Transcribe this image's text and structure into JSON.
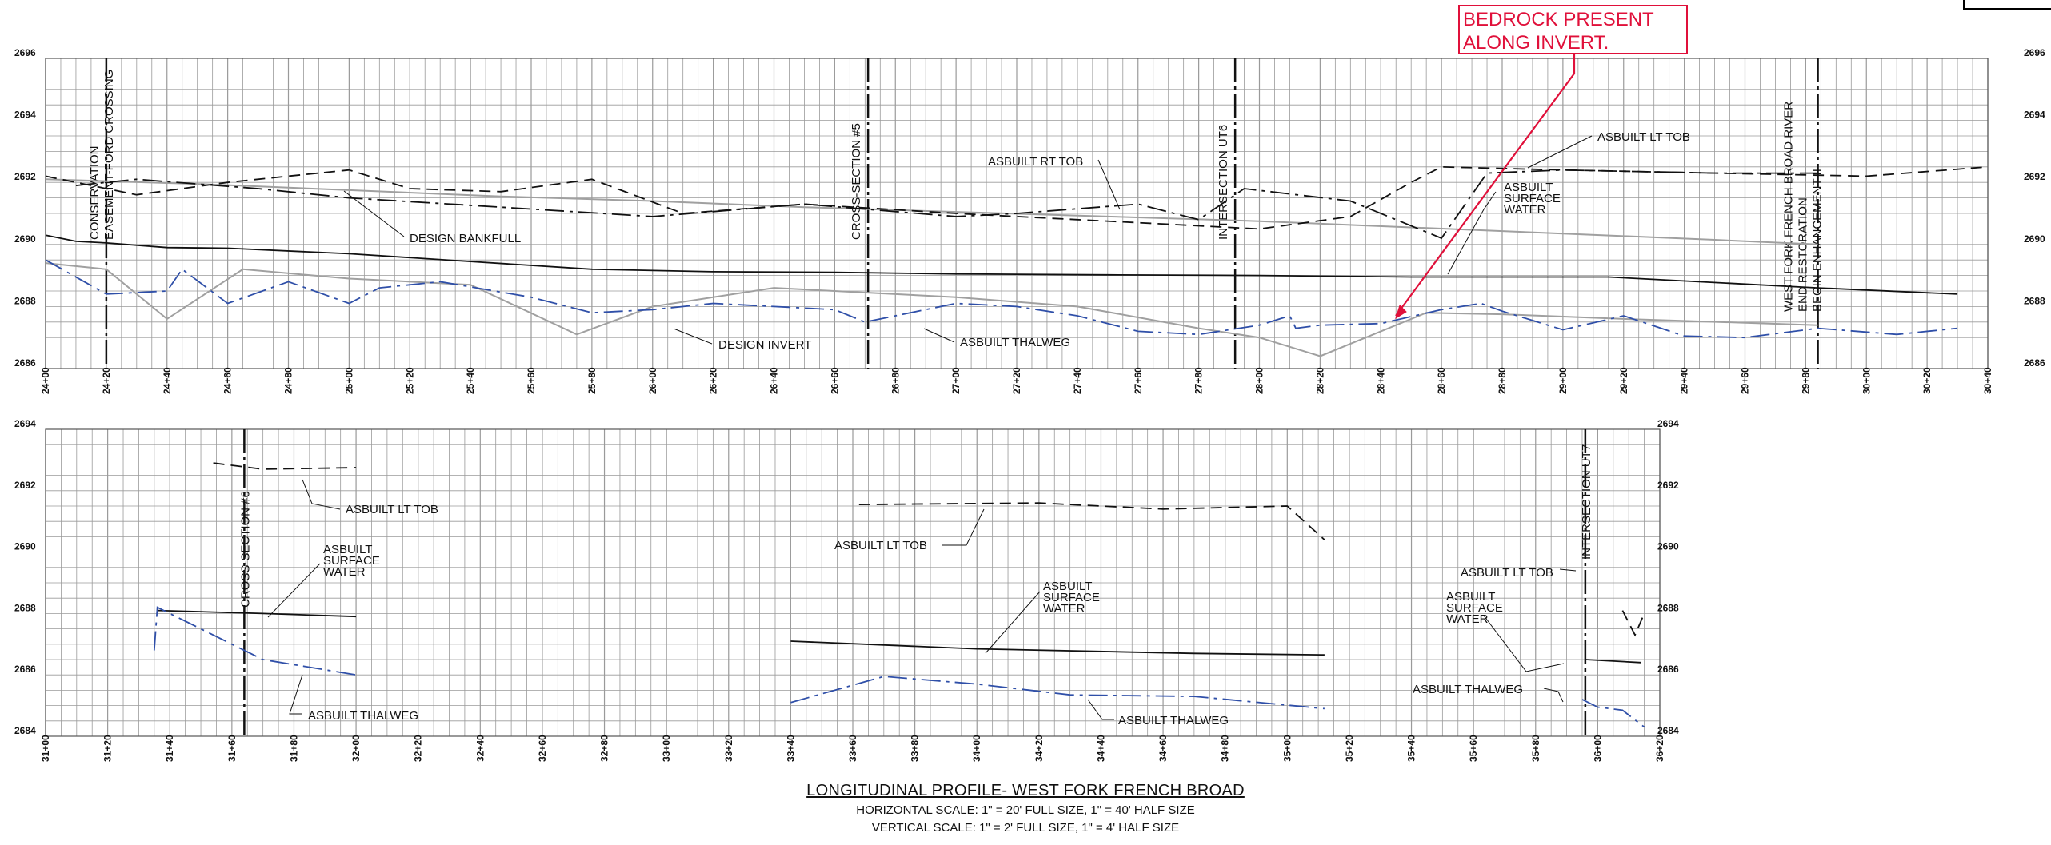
{
  "captions": {
    "title": "LONGITUDINAL PROFILE- WEST FORK FRENCH BROAD",
    "horizontal_scale": "HORIZONTAL SCALE: 1\" = 20' FULL SIZE, 1\" = 40' HALF SIZE",
    "vertical_scale": "VERTICAL SCALE: 1\" = 2' FULL SIZE, 1\" = 4' HALF SIZE"
  },
  "note": {
    "line1": "BEDROCK PRESENT",
    "line2": "ALONG INVERT."
  },
  "colors": {
    "grid": "#9a9a9a",
    "blue": "#2f4fa8",
    "gray": "#a0a0a0",
    "black": "#111111",
    "red": "#e0103a"
  },
  "chart_data": [
    {
      "type": "line",
      "name": "top-profile",
      "x_tick_labels": [
        "24+00",
        "24+20",
        "24+40",
        "24+60",
        "24+80",
        "25+00",
        "25+20",
        "25+40",
        "25+60",
        "25+80",
        "26+00",
        "26+20",
        "26+40",
        "26+60",
        "26+80",
        "27+00",
        "27+20",
        "27+40",
        "27+60",
        "27+80",
        "28+00",
        "28+20",
        "28+40",
        "28+60",
        "28+80",
        "29+00",
        "29+20",
        "29+40",
        "29+60",
        "29+80",
        "30+00",
        "30+20",
        "30+40"
      ],
      "y_tick_labels": [
        "2696",
        "2694",
        "2692",
        "2690",
        "2688",
        "2686"
      ],
      "xlim": [
        2400,
        3040
      ],
      "ylim": [
        2686,
        2696
      ],
      "vertical_markers": [
        {
          "station": 2420,
          "label": "CONSERVATION"
        },
        {
          "station": 2420,
          "label": "EASEMENT-FORD CROSSING"
        },
        {
          "station": 2671,
          "label": "CROSS-SECTION #5"
        },
        {
          "station": 2792,
          "label": "INTERSECTION UT6"
        },
        {
          "station": 2984,
          "label": "WEST FORK FRENCH BROAD RIVER"
        },
        {
          "station": 2984,
          "label": "END RESTORATION"
        },
        {
          "station": 2984,
          "label": "BEGIN ENHANCEMENT II"
        }
      ],
      "series": [
        {
          "key": "design_bankfull",
          "style": "solid",
          "color": "gray",
          "x": [
            2400,
            2450,
            2500,
            2550,
            2600,
            2650,
            2700,
            2750,
            2800,
            2850,
            2900,
            2950,
            2984
          ],
          "y": [
            2692.1,
            2691.95,
            2691.75,
            2691.55,
            2691.4,
            2691.2,
            2691.05,
            2690.9,
            2690.75,
            2690.55,
            2690.35,
            2690.15,
            2690.0
          ]
        },
        {
          "key": "design_invert",
          "style": "solid",
          "color": "gray",
          "x": [
            2400,
            2420,
            2440,
            2465,
            2500,
            2540,
            2575,
            2600,
            2640,
            2700,
            2740,
            2780,
            2800,
            2820,
            2855,
            2880,
            2920,
            2984
          ],
          "y": [
            2689.4,
            2689.2,
            2687.6,
            2689.2,
            2688.9,
            2688.7,
            2687.1,
            2688.0,
            2688.6,
            2688.3,
            2688.0,
            2687.3,
            2687.0,
            2686.4,
            2687.8,
            2687.75,
            2687.6,
            2687.4
          ]
        },
        {
          "key": "surface_water",
          "style": "solid",
          "color": "black",
          "x": [
            2400,
            2410,
            2420,
            2440,
            2460,
            2500,
            2540,
            2580,
            2620,
            2660,
            2700,
            2750,
            2800,
            2850,
            2880,
            2900,
            2915,
            2984,
            3030
          ],
          "y": [
            2690.3,
            2690.1,
            2690.05,
            2689.9,
            2689.88,
            2689.7,
            2689.45,
            2689.2,
            2689.12,
            2689.1,
            2689.05,
            2689.02,
            2689.0,
            2688.95,
            2688.95,
            2688.95,
            2688.95,
            2688.6,
            2688.4
          ]
        },
        {
          "key": "asbuilt_thalweg",
          "style": "dashdot",
          "color": "blue",
          "x": [
            2400,
            2420,
            2440,
            2445,
            2460,
            2480,
            2500,
            2510,
            2530,
            2560,
            2580,
            2600,
            2620,
            2640,
            2660,
            2670,
            2680,
            2700,
            2720,
            2740,
            2760,
            2780,
            2800,
            2810,
            2812,
            2820,
            2840,
            2860,
            2873,
            2880,
            2900,
            2920,
            2940,
            2960,
            2984,
            3010,
            3030
          ],
          "y": [
            2689.5,
            2688.4,
            2688.5,
            2689.2,
            2688.1,
            2688.8,
            2688.1,
            2688.6,
            2688.8,
            2688.3,
            2687.8,
            2687.9,
            2688.1,
            2688.0,
            2687.9,
            2687.5,
            2687.7,
            2688.1,
            2688.0,
            2687.7,
            2687.2,
            2687.1,
            2687.4,
            2687.7,
            2687.3,
            2687.4,
            2687.45,
            2687.9,
            2688.1,
            2687.85,
            2687.25,
            2687.7,
            2687.05,
            2687.0,
            2687.3,
            2687.1,
            2687.3
          ]
        },
        {
          "key": "asbuilt_rt_tob",
          "style": "dashdot",
          "color": "black",
          "x": [
            2410,
            2430,
            2470,
            2500,
            2550,
            2600,
            2650,
            2700,
            2720,
            2760,
            2780,
            2795,
            2830,
            2860,
            2875,
            2900,
            2950,
            2984
          ],
          "y": [
            2691.9,
            2692.1,
            2691.8,
            2691.5,
            2691.2,
            2690.9,
            2691.3,
            2690.9,
            2691.0,
            2691.3,
            2690.8,
            2691.8,
            2691.4,
            2690.2,
            2692.3,
            2692.4,
            2692.3,
            2692.3
          ]
        },
        {
          "key": "asbuilt_lt_tob",
          "style": "dashed",
          "color": "black",
          "x": [
            2400,
            2430,
            2460,
            2480,
            2500,
            2520,
            2550,
            2580,
            2610,
            2650,
            2700,
            2740,
            2760,
            2780,
            2800,
            2830,
            2850,
            2860,
            2900,
            2950,
            3000,
            3040
          ],
          "y": [
            2692.2,
            2691.6,
            2692.0,
            2692.2,
            2692.4,
            2691.8,
            2691.7,
            2692.1,
            2691.0,
            2691.3,
            2691.0,
            2690.8,
            2690.7,
            2690.6,
            2690.5,
            2690.9,
            2692.0,
            2692.5,
            2692.4,
            2692.3,
            2692.2,
            2692.5
          ]
        }
      ],
      "labels": [
        "DESIGN BANKFULL",
        "DESIGN INVERT",
        "ASBUILT THALWEG",
        "ASBUILT RT TOB",
        "ASBUILT LT TOB",
        "ASBUILT",
        "SURFACE",
        "WATER"
      ]
    },
    {
      "type": "line",
      "name": "bottom-profile",
      "x_tick_labels": [
        "31+00",
        "31+20",
        "31+40",
        "31+60",
        "31+80",
        "32+00",
        "32+20",
        "32+40",
        "32+60",
        "32+80",
        "33+00",
        "33+20",
        "33+40",
        "33+60",
        "33+80",
        "34+00",
        "34+20",
        "34+40",
        "34+60",
        "34+80",
        "35+00",
        "35+20",
        "35+40",
        "35+60",
        "35+80",
        "36+00",
        "36+20"
      ],
      "y_tick_labels": [
        "2694",
        "2692",
        "2690",
        "2688",
        "2686",
        "2684"
      ],
      "xlim": [
        3100,
        3620
      ],
      "ylim": [
        2684,
        2694
      ],
      "vertical_markers": [
        {
          "station": 3164,
          "label": "CROSS-SECTION #6"
        },
        {
          "station": 3596,
          "label": "INTERSECTION UT7"
        }
      ],
      "series": [
        {
          "key": "surface_water_1",
          "style": "solid",
          "color": "black",
          "x": [
            3136,
            3170,
            3200
          ],
          "y": [
            2688.1,
            2688.0,
            2687.9
          ]
        },
        {
          "key": "surface_water_2",
          "style": "solid",
          "color": "black",
          "x": [
            3340,
            3400,
            3470,
            3512
          ],
          "y": [
            2687.1,
            2686.85,
            2686.7,
            2686.65
          ]
        },
        {
          "key": "surface_water_3",
          "style": "solid",
          "color": "black",
          "x": [
            3596,
            3614
          ],
          "y": [
            2686.5,
            2686.4
          ]
        },
        {
          "key": "thalweg_1",
          "style": "dashdot",
          "color": "blue",
          "x": [
            3135,
            3136,
            3170,
            3200
          ],
          "y": [
            2686.8,
            2688.2,
            2686.5,
            2686.0
          ]
        },
        {
          "key": "thalweg_2",
          "style": "dashdot",
          "color": "blue",
          "x": [
            3340,
            3370,
            3400,
            3430,
            3470,
            3512
          ],
          "y": [
            2685.1,
            2685.95,
            2685.7,
            2685.35,
            2685.3,
            2684.9
          ]
        },
        {
          "key": "thalweg_3",
          "style": "dashdot",
          "color": "blue",
          "x": [
            3595,
            3600,
            3608,
            3615
          ],
          "y": [
            2685.2,
            2684.95,
            2684.85,
            2684.3
          ]
        },
        {
          "key": "lt_tob_1",
          "style": "dashed",
          "color": "black",
          "x": [
            3154,
            3170,
            3200
          ],
          "y": [
            2692.9,
            2692.7,
            2692.75
          ]
        },
        {
          "key": "lt_tob_2",
          "style": "dashed",
          "color": "black",
          "x": [
            3362,
            3420,
            3460,
            3500,
            3512
          ],
          "y": [
            2691.55,
            2691.6,
            2691.4,
            2691.5,
            2690.4
          ]
        },
        {
          "key": "lt_tob_3",
          "style": "dashed",
          "color": "black",
          "x": [
            3608,
            3612,
            3615
          ],
          "y": [
            2688.1,
            2687.3,
            2688.0
          ]
        }
      ],
      "labels": [
        "ASBUILT LT TOB",
        "ASBUILT",
        "SURFACE",
        "WATER",
        "ASBUILT THALWEG",
        "ASBUILT LT TOB",
        "ASBUILT",
        "SURFACE",
        "WATER",
        "ASBUILT THALWEG",
        "ASBUILT LT TOB",
        "ASBUILT",
        "SURFACE",
        "WATER",
        "ASBUILT THALWEG"
      ]
    }
  ]
}
